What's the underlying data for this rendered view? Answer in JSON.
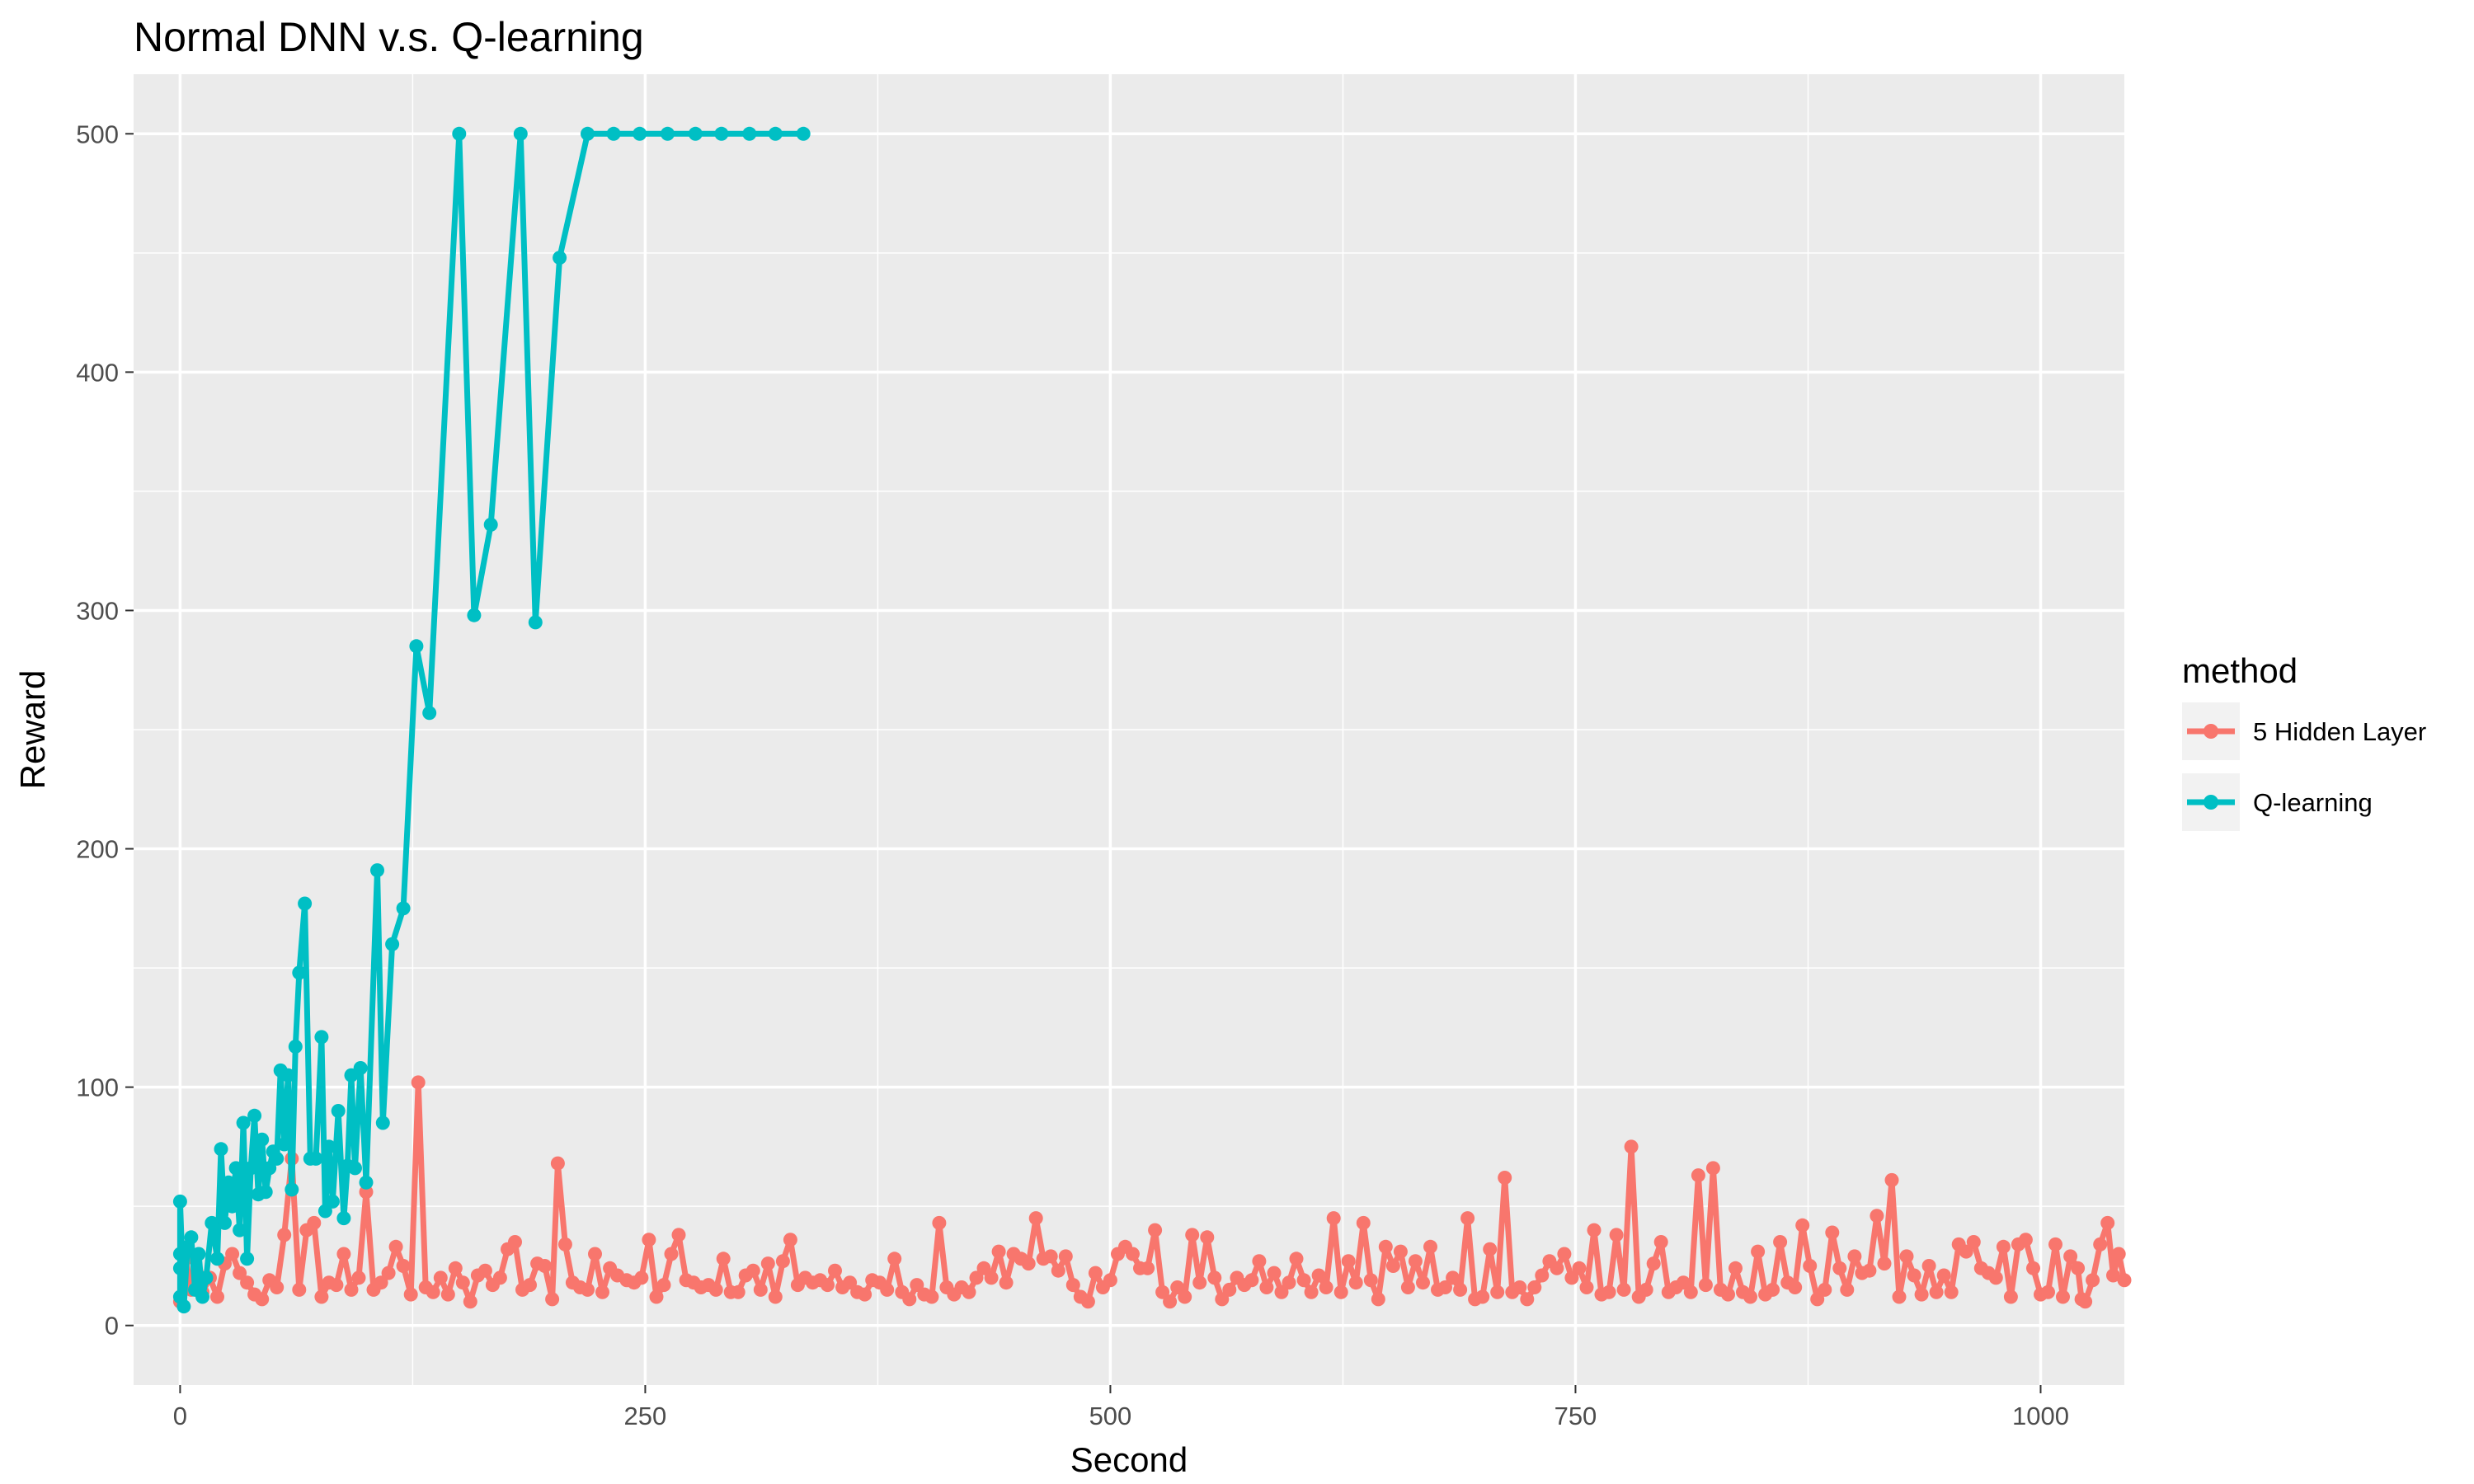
{
  "chart_data": {
    "type": "line",
    "title": "Normal DNN v.s. Q-learning",
    "xlabel": "Second",
    "ylabel": "Reward",
    "xlim": [
      -25,
      1045
    ],
    "ylim": [
      -25,
      525
    ],
    "x_ticks": [
      0,
      250,
      500,
      750,
      1000
    ],
    "y_ticks": [
      0,
      100,
      200,
      300,
      400,
      500
    ],
    "grid": true,
    "legend_title": "method",
    "legend_position": "right",
    "series": [
      {
        "name": "5 Hidden Layer",
        "color": "#F8766D",
        "points": [
          [
            0,
            10
          ],
          [
            3,
            28
          ],
          [
            6,
            15
          ],
          [
            9,
            22
          ],
          [
            12,
            14
          ],
          [
            16,
            20
          ],
          [
            20,
            12
          ],
          [
            24,
            26
          ],
          [
            28,
            30
          ],
          [
            32,
            22
          ],
          [
            36,
            18
          ],
          [
            40,
            13
          ],
          [
            44,
            11
          ],
          [
            48,
            19
          ],
          [
            52,
            16
          ],
          [
            56,
            38
          ],
          [
            60,
            70
          ],
          [
            64,
            15
          ],
          [
            68,
            40
          ],
          [
            72,
            43
          ],
          [
            76,
            12
          ],
          [
            80,
            18
          ],
          [
            84,
            17
          ],
          [
            88,
            30
          ],
          [
            92,
            15
          ],
          [
            96,
            20
          ],
          [
            100,
            56
          ],
          [
            104,
            15
          ],
          [
            108,
            18
          ],
          [
            112,
            22
          ],
          [
            116,
            33
          ],
          [
            120,
            25
          ],
          [
            124,
            13
          ],
          [
            128,
            102
          ],
          [
            132,
            16
          ],
          [
            136,
            14
          ],
          [
            140,
            20
          ],
          [
            144,
            13
          ],
          [
            148,
            24
          ],
          [
            152,
            18
          ],
          [
            156,
            10
          ],
          [
            160,
            21
          ],
          [
            164,
            23
          ],
          [
            168,
            17
          ],
          [
            172,
            20
          ],
          [
            176,
            32
          ],
          [
            180,
            35
          ],
          [
            184,
            15
          ],
          [
            188,
            17
          ],
          [
            192,
            26
          ],
          [
            196,
            25
          ],
          [
            200,
            11
          ],
          [
            203,
            68
          ],
          [
            207,
            34
          ],
          [
            211,
            18
          ],
          [
            215,
            16
          ],
          [
            219,
            15
          ],
          [
            223,
            30
          ],
          [
            227,
            14
          ],
          [
            231,
            24
          ],
          [
            235,
            21
          ],
          [
            240,
            19
          ],
          [
            244,
            18
          ],
          [
            248,
            20
          ],
          [
            252,
            36
          ],
          [
            256,
            12
          ],
          [
            260,
            17
          ],
          [
            264,
            30
          ],
          [
            268,
            38
          ],
          [
            272,
            19
          ],
          [
            276,
            18
          ],
          [
            280,
            16
          ],
          [
            284,
            17
          ],
          [
            288,
            15
          ],
          [
            292,
            28
          ],
          [
            296,
            14
          ],
          [
            300,
            14
          ],
          [
            304,
            21
          ],
          [
            308,
            23
          ],
          [
            312,
            15
          ],
          [
            316,
            26
          ],
          [
            320,
            12
          ],
          [
            324,
            27
          ],
          [
            328,
            36
          ],
          [
            332,
            17
          ],
          [
            336,
            20
          ],
          [
            340,
            18
          ],
          [
            344,
            19
          ],
          [
            348,
            17
          ],
          [
            352,
            23
          ],
          [
            356,
            16
          ],
          [
            360,
            18
          ],
          [
            364,
            14
          ],
          [
            368,
            13
          ],
          [
            372,
            19
          ],
          [
            376,
            18
          ],
          [
            380,
            15
          ],
          [
            384,
            28
          ],
          [
            388,
            14
          ],
          [
            392,
            11
          ],
          [
            396,
            17
          ],
          [
            400,
            13
          ],
          [
            404,
            12
          ],
          [
            408,
            43
          ],
          [
            412,
            16
          ],
          [
            416,
            13
          ],
          [
            420,
            16
          ],
          [
            424,
            14
          ],
          [
            428,
            20
          ],
          [
            432,
            24
          ],
          [
            436,
            20
          ],
          [
            440,
            31
          ],
          [
            444,
            18
          ],
          [
            448,
            30
          ],
          [
            452,
            28
          ],
          [
            456,
            26
          ],
          [
            460,
            45
          ],
          [
            464,
            28
          ],
          [
            468,
            29
          ],
          [
            472,
            23
          ],
          [
            476,
            29
          ],
          [
            480,
            17
          ],
          [
            484,
            12
          ],
          [
            488,
            10
          ],
          [
            492,
            22
          ],
          [
            496,
            16
          ],
          [
            500,
            19
          ],
          [
            504,
            30
          ],
          [
            508,
            33
          ],
          [
            512,
            30
          ],
          [
            516,
            24
          ],
          [
            520,
            24
          ],
          [
            524,
            40
          ],
          [
            528,
            14
          ],
          [
            532,
            10
          ],
          [
            536,
            16
          ],
          [
            540,
            12
          ],
          [
            544,
            38
          ],
          [
            548,
            18
          ],
          [
            552,
            37
          ],
          [
            556,
            20
          ],
          [
            560,
            11
          ],
          [
            564,
            15
          ],
          [
            568,
            20
          ],
          [
            572,
            17
          ],
          [
            576,
            19
          ],
          [
            580,
            27
          ],
          [
            584,
            16
          ],
          [
            588,
            22
          ],
          [
            592,
            14
          ],
          [
            596,
            18
          ],
          [
            600,
            28
          ],
          [
            604,
            19
          ],
          [
            608,
            14
          ],
          [
            612,
            21
          ],
          [
            616,
            16
          ],
          [
            620,
            45
          ],
          [
            624,
            14
          ],
          [
            628,
            27
          ],
          [
            632,
            18
          ],
          [
            636,
            43
          ],
          [
            640,
            19
          ],
          [
            644,
            11
          ],
          [
            648,
            33
          ],
          [
            652,
            25
          ],
          [
            656,
            31
          ],
          [
            660,
            16
          ],
          [
            664,
            27
          ],
          [
            668,
            18
          ],
          [
            672,
            33
          ],
          [
            676,
            15
          ],
          [
            680,
            16
          ],
          [
            684,
            20
          ],
          [
            688,
            15
          ],
          [
            692,
            45
          ],
          [
            696,
            11
          ],
          [
            700,
            12
          ],
          [
            704,
            32
          ],
          [
            708,
            14
          ],
          [
            712,
            62
          ],
          [
            716,
            14
          ],
          [
            720,
            16
          ],
          [
            724,
            11
          ],
          [
            728,
            16
          ],
          [
            732,
            21
          ],
          [
            736,
            27
          ],
          [
            740,
            24
          ],
          [
            744,
            30
          ],
          [
            748,
            20
          ],
          [
            752,
            24
          ],
          [
            756,
            16
          ],
          [
            760,
            40
          ],
          [
            764,
            13
          ],
          [
            768,
            14
          ],
          [
            772,
            38
          ],
          [
            776,
            15
          ],
          [
            780,
            75
          ],
          [
            784,
            12
          ],
          [
            788,
            15
          ],
          [
            792,
            26
          ],
          [
            796,
            35
          ],
          [
            800,
            14
          ],
          [
            804,
            16
          ],
          [
            808,
            18
          ],
          [
            812,
            14
          ],
          [
            816,
            63
          ],
          [
            820,
            17
          ],
          [
            824,
            66
          ],
          [
            828,
            15
          ],
          [
            832,
            13
          ],
          [
            836,
            24
          ],
          [
            840,
            14
          ],
          [
            844,
            12
          ],
          [
            848,
            31
          ],
          [
            852,
            13
          ],
          [
            856,
            15
          ],
          [
            860,
            35
          ],
          [
            864,
            18
          ],
          [
            868,
            16
          ],
          [
            872,
            42
          ],
          [
            876,
            25
          ],
          [
            880,
            11
          ],
          [
            884,
            15
          ],
          [
            888,
            39
          ],
          [
            892,
            24
          ],
          [
            896,
            15
          ],
          [
            900,
            29
          ],
          [
            904,
            22
          ],
          [
            908,
            23
          ],
          [
            912,
            46
          ],
          [
            916,
            26
          ],
          [
            920,
            61
          ],
          [
            924,
            12
          ],
          [
            928,
            29
          ],
          [
            932,
            21
          ],
          [
            936,
            13
          ],
          [
            940,
            25
          ],
          [
            944,
            14
          ],
          [
            948,
            21
          ],
          [
            952,
            14
          ],
          [
            956,
            34
          ],
          [
            960,
            31
          ],
          [
            964,
            35
          ],
          [
            968,
            24
          ],
          [
            972,
            22
          ],
          [
            976,
            20
          ],
          [
            980,
            33
          ],
          [
            984,
            12
          ],
          [
            988,
            34
          ],
          [
            992,
            36
          ],
          [
            996,
            24
          ],
          [
            1000,
            13
          ],
          [
            1004,
            14
          ],
          [
            1008,
            34
          ],
          [
            1012,
            12
          ],
          [
            1016,
            29
          ],
          [
            1020,
            24
          ],
          [
            1024,
            10
          ],
          [
            1028,
            19
          ],
          [
            1032,
            34
          ],
          [
            1036,
            43
          ],
          [
            1039,
            21
          ],
          [
            1042,
            30
          ],
          [
            1045,
            19
          ],
          [
            1022,
            11
          ]
        ]
      },
      {
        "name": "Q-learning",
        "color": "#00BFC4",
        "points": [
          [
            0,
            12
          ],
          [
            0,
            24
          ],
          [
            0,
            30
          ],
          [
            0,
            52
          ],
          [
            2,
            8
          ],
          [
            4,
            33
          ],
          [
            6,
            37
          ],
          [
            8,
            15
          ],
          [
            10,
            30
          ],
          [
            12,
            12
          ],
          [
            14,
            20
          ],
          [
            17,
            43
          ],
          [
            20,
            28
          ],
          [
            22,
            74
          ],
          [
            24,
            43
          ],
          [
            26,
            60
          ],
          [
            28,
            50
          ],
          [
            30,
            66
          ],
          [
            32,
            40
          ],
          [
            34,
            85
          ],
          [
            36,
            28
          ],
          [
            38,
            66
          ],
          [
            40,
            88
          ],
          [
            42,
            55
          ],
          [
            44,
            78
          ],
          [
            46,
            56
          ],
          [
            48,
            66
          ],
          [
            50,
            73
          ],
          [
            52,
            70
          ],
          [
            54,
            107
          ],
          [
            56,
            76
          ],
          [
            58,
            105
          ],
          [
            60,
            57
          ],
          [
            62,
            117
          ],
          [
            64,
            148
          ],
          [
            67,
            177
          ],
          [
            70,
            70
          ],
          [
            73,
            70
          ],
          [
            76,
            121
          ],
          [
            78,
            48
          ],
          [
            80,
            75
          ],
          [
            82,
            52
          ],
          [
            85,
            90
          ],
          [
            88,
            45
          ],
          [
            90,
            67
          ],
          [
            92,
            105
          ],
          [
            94,
            66
          ],
          [
            97,
            108
          ],
          [
            100,
            60
          ],
          [
            106,
            191
          ],
          [
            109,
            85
          ],
          [
            114,
            160
          ],
          [
            120,
            175
          ],
          [
            127,
            285
          ],
          [
            134,
            257
          ],
          [
            150,
            500
          ],
          [
            158,
            298
          ],
          [
            167,
            336
          ],
          [
            183,
            500
          ],
          [
            191,
            295
          ],
          [
            204,
            448
          ],
          [
            219,
            500
          ],
          [
            233,
            500
          ],
          [
            247,
            500
          ],
          [
            262,
            500
          ],
          [
            277,
            500
          ],
          [
            291,
            500
          ],
          [
            306,
            500
          ],
          [
            320,
            500
          ],
          [
            335,
            500
          ]
        ]
      }
    ]
  }
}
